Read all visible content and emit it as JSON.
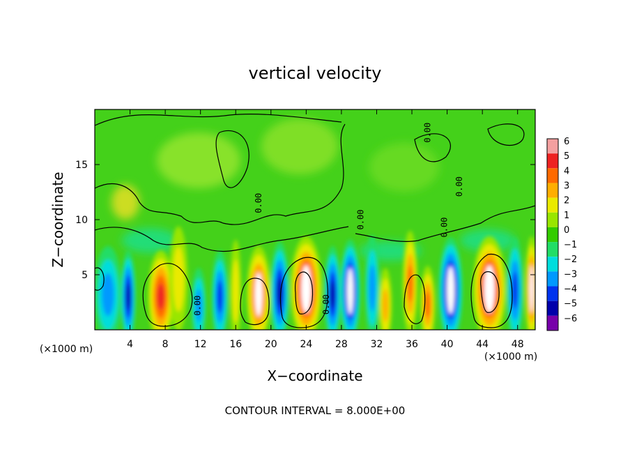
{
  "chart_data": {
    "type": "heatmap",
    "title": "vertical velocity",
    "xlabel": "X−coordinate",
    "ylabel": "Z−coordinate",
    "x_units_left": "(×1000 m)",
    "x_units_right": "(×1000 m)",
    "footer": "CONTOUR INTERVAL = 8.000E+00",
    "xlim": [
      0,
      50
    ],
    "ylim": [
      0,
      20
    ],
    "x_ticks": [
      4,
      8,
      12,
      16,
      20,
      24,
      28,
      32,
      36,
      40,
      44,
      48
    ],
    "y_ticks": [
      5,
      10,
      15
    ],
    "colorbar": {
      "ticks": [
        "6",
        "5",
        "4",
        "3",
        "2",
        "1",
        "0",
        "−1",
        "−2",
        "−3",
        "−4",
        "−5",
        "−6"
      ],
      "colors": [
        "#f4a0a0",
        "#ee2222",
        "#ff6a00",
        "#ffae00",
        "#eaea00",
        "#99e600",
        "#33cc00",
        "#22dd66",
        "#00dddd",
        "#0099ff",
        "#0033ee",
        "#0000aa",
        "#7700aa"
      ]
    },
    "contour_labels": [
      {
        "x": 12.0,
        "z": 2.2,
        "text": "0.00"
      },
      {
        "x": 26.6,
        "z": 2.3,
        "text": "0.00"
      },
      {
        "x": 18.9,
        "z": 11.5,
        "text": "0.00"
      },
      {
        "x": 30.5,
        "z": 10.0,
        "text": "0.00"
      },
      {
        "x": 38.1,
        "z": 17.9,
        "text": "0.00"
      },
      {
        "x": 40.0,
        "z": 9.3,
        "text": "0.00"
      },
      {
        "x": 41.7,
        "z": 13.0,
        "text": "0.00"
      }
    ],
    "cells": [
      {
        "x": 1.5,
        "z": 3.2,
        "w": 3.0,
        "value": -3.5
      },
      {
        "x": 3.8,
        "z": 3.0,
        "w": 1.6,
        "value": -5.0
      },
      {
        "x": 7.5,
        "z": 3.0,
        "w": 2.8,
        "value": 5.0
      },
      {
        "x": 9.5,
        "z": 4.6,
        "w": 2.0,
        "value": 2.0
      },
      {
        "x": 11.8,
        "z": 2.2,
        "w": 1.6,
        "value": -3.0
      },
      {
        "x": 14.2,
        "z": 3.0,
        "w": 1.8,
        "value": -4.5
      },
      {
        "x": 16.0,
        "z": 3.5,
        "w": 1.2,
        "value": 2.5
      },
      {
        "x": 18.6,
        "z": 3.2,
        "w": 2.6,
        "value": 5.5
      },
      {
        "x": 21.0,
        "z": 3.4,
        "w": 2.0,
        "value": -5.0
      },
      {
        "x": 24.0,
        "z": 3.7,
        "w": 3.4,
        "value": 6.0
      },
      {
        "x": 27.0,
        "z": 3.2,
        "w": 1.8,
        "value": -5.0
      },
      {
        "x": 29.0,
        "z": 3.5,
        "w": 2.2,
        "value": -6.0
      },
      {
        "x": 31.5,
        "z": 3.8,
        "w": 1.6,
        "value": -3.5
      },
      {
        "x": 33.0,
        "z": 2.2,
        "w": 1.4,
        "value": 3.0
      },
      {
        "x": 35.8,
        "z": 4.2,
        "w": 1.6,
        "value": 4.5
      },
      {
        "x": 37.8,
        "z": 2.3,
        "w": 1.6,
        "value": 4.0
      },
      {
        "x": 40.4,
        "z": 3.6,
        "w": 2.6,
        "value": -6.0
      },
      {
        "x": 44.8,
        "z": 3.7,
        "w": 3.6,
        "value": 6.0
      },
      {
        "x": 47.7,
        "z": 3.6,
        "w": 1.8,
        "value": -4.0
      },
      {
        "x": 49.6,
        "z": 3.7,
        "w": 1.4,
        "value": 5.5
      }
    ]
  }
}
